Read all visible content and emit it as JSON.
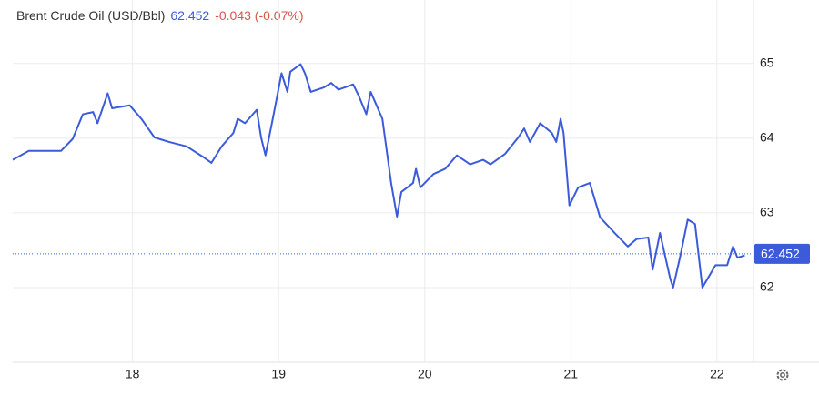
{
  "chart_data": {
    "type": "line",
    "title": "Brent Crude Oil (USD/Bbl)",
    "last_value": 62.452,
    "change": "-0.043 (-0.07%)",
    "x": [
      17.18,
      17.29,
      17.43,
      17.51,
      17.59,
      17.66,
      17.73,
      17.76,
      17.83,
      17.86,
      17.98,
      18.06,
      18.15,
      18.25,
      18.37,
      18.49,
      18.54,
      18.61,
      18.69,
      18.72,
      18.77,
      18.85,
      18.88,
      18.91,
      18.96,
      19.02,
      19.06,
      19.08,
      19.15,
      19.18,
      19.22,
      19.31,
      19.36,
      19.41,
      19.51,
      19.55,
      19.6,
      19.63,
      19.71,
      19.77,
      19.81,
      19.84,
      19.92,
      19.94,
      19.97,
      20.06,
      20.14,
      20.22,
      20.31,
      20.4,
      20.45,
      20.55,
      20.64,
      20.68,
      20.72,
      20.79,
      20.87,
      20.9,
      20.93,
      20.95,
      20.99,
      21.05,
      21.13,
      21.2,
      21.3,
      21.39,
      21.45,
      21.53,
      21.56,
      21.61,
      21.68,
      21.7,
      21.75,
      21.8,
      21.85,
      21.9,
      21.99,
      22.07,
      22.11,
      22.14,
      22.19
    ],
    "series": [
      {
        "name": "Brent Crude Oil",
        "color": "#3b5bdb",
        "values": [
          63.71,
          63.83,
          63.83,
          63.83,
          63.99,
          64.32,
          64.35,
          64.2,
          64.6,
          64.4,
          64.44,
          64.26,
          64.01,
          63.95,
          63.89,
          63.74,
          63.67,
          63.89,
          64.07,
          64.26,
          64.2,
          64.38,
          64.01,
          63.77,
          64.26,
          64.87,
          64.62,
          64.89,
          64.99,
          64.87,
          64.62,
          64.68,
          64.74,
          64.65,
          64.72,
          64.56,
          64.32,
          64.62,
          64.26,
          63.4,
          62.95,
          63.28,
          63.4,
          63.59,
          63.34,
          63.52,
          63.59,
          63.77,
          63.65,
          63.71,
          63.65,
          63.79,
          64.01,
          64.13,
          63.95,
          64.2,
          64.07,
          63.95,
          64.26,
          64.07,
          63.1,
          63.34,
          63.4,
          62.94,
          62.73,
          62.55,
          62.65,
          62.67,
          62.24,
          62.73,
          62.12,
          62.0,
          62.43,
          62.91,
          62.85,
          62.0,
          62.3,
          62.3,
          62.55,
          62.4,
          62.43
        ]
      }
    ],
    "xlim": [
      17.18,
      22.25
    ],
    "xticks": [
      18,
      19,
      20,
      21,
      22
    ],
    "ylim": [
      61,
      65.85
    ],
    "yticks": [
      62,
      63,
      64,
      65
    ],
    "grid": true
  }
}
